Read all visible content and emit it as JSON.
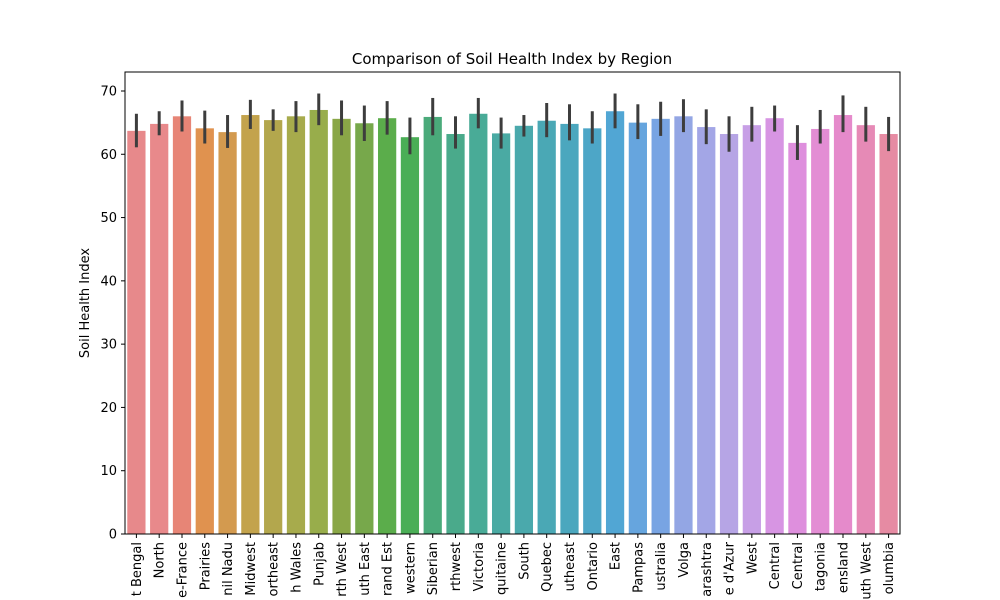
{
  "chart_data": {
    "type": "bar",
    "title": "Comparison of Soil Health Index by Region",
    "xlabel": "",
    "ylabel": "Soil Health Index",
    "ylim": [
      0,
      73
    ],
    "yticks": [
      0,
      10,
      20,
      30,
      40,
      50,
      60,
      70
    ],
    "grid": false,
    "error_bars": true,
    "categories": [
      "t Bengal",
      "North",
      "e-France",
      "Prairies",
      "nil Nadu",
      "Midwest",
      "ortheast",
      "h Wales",
      "Punjab",
      "rth West",
      "uth East",
      "rand Est",
      "western",
      "Siberian",
      "rthwest",
      "Victoria",
      "quitaine",
      "South",
      "Quebec",
      "utheast",
      "Ontario",
      "East",
      "Pampas",
      "ustralia",
      "Volga",
      "arashtra",
      "e d'Azur",
      "West",
      "Central",
      "Central",
      "tagonia",
      "ensland",
      "uth West",
      "olumbia"
    ],
    "values": [
      63.7,
      64.8,
      66.0,
      64.1,
      63.5,
      66.2,
      65.4,
      66.0,
      67.0,
      65.6,
      64.9,
      65.7,
      62.7,
      65.9,
      63.2,
      66.4,
      63.3,
      64.5,
      65.3,
      64.8,
      64.1,
      66.8,
      65.0,
      65.6,
      66.0,
      64.3,
      63.2,
      64.6,
      65.7,
      61.8,
      64.0,
      66.2,
      64.6,
      63.2
    ],
    "ci_low": [
      61.1,
      63.0,
      63.6,
      61.7,
      61.0,
      64.0,
      63.7,
      63.5,
      64.6,
      63.0,
      62.1,
      63.1,
      60.0,
      63.0,
      60.9,
      64.1,
      60.9,
      62.8,
      62.7,
      62.2,
      61.7,
      64.1,
      62.4,
      62.9,
      63.5,
      61.6,
      60.4,
      62.0,
      63.6,
      59.1,
      61.7,
      63.5,
      62.0,
      60.5
    ],
    "ci_high": [
      66.4,
      66.8,
      68.5,
      66.9,
      66.2,
      68.6,
      67.1,
      68.4,
      69.6,
      68.5,
      67.7,
      68.4,
      65.8,
      68.9,
      66.0,
      68.9,
      65.8,
      66.2,
      68.1,
      67.9,
      66.8,
      69.6,
      67.9,
      68.3,
      68.7,
      67.1,
      66.0,
      67.5,
      67.7,
      64.6,
      67.0,
      69.3,
      67.5,
      65.9
    ],
    "colors": [
      "#E7898B",
      "#E8898B",
      "#E78576",
      "#E0924F",
      "#D39A4F",
      "#C3A34C",
      "#B3A74D",
      "#A7AB4C",
      "#98AD4B",
      "#8AA747",
      "#77A84B",
      "#5BAD4B",
      "#4AAE56",
      "#4AAA7A",
      "#4AAA8B",
      "#49AB97",
      "#4AAAA3",
      "#4AA9AC",
      "#4AA8B5",
      "#4BA7BE",
      "#4DA6C7",
      "#51A6D4",
      "#66A5DE",
      "#78A4E3",
      "#93A6E4",
      "#A3A6E6",
      "#B6A5E5",
      "#C79FE6",
      "#D795E3",
      "#DE8FDD",
      "#E38DD4",
      "#E58ACB",
      "#E68AB6",
      "#E68BA3"
    ]
  }
}
